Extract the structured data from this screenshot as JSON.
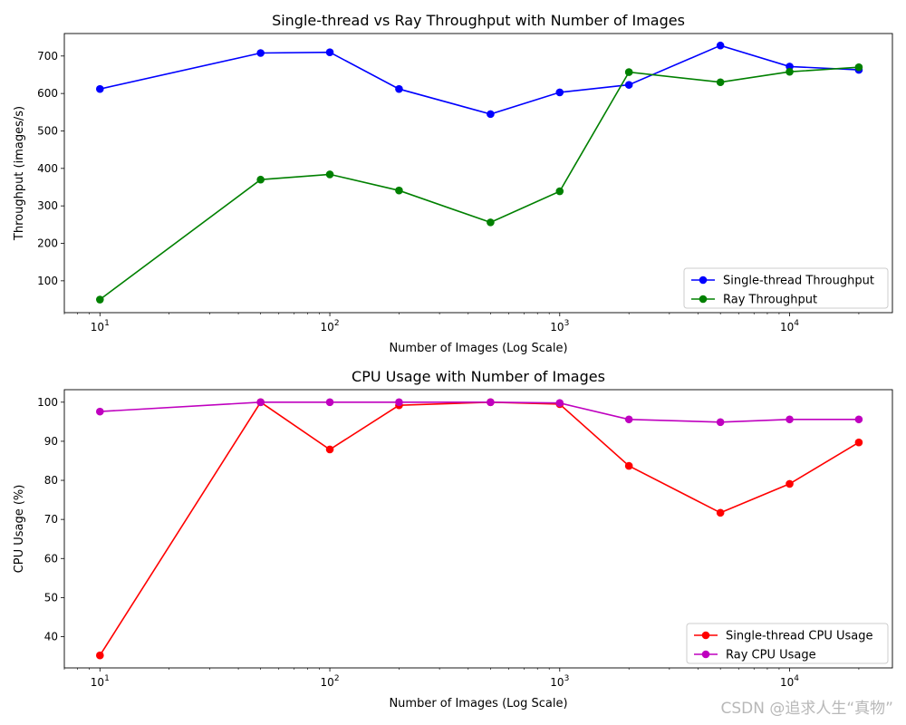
{
  "watermark": "CSDN @追求人生“真物”",
  "chart_data": [
    {
      "type": "line",
      "title": "Single-thread vs Ray Throughput with Number of Images",
      "xlabel": "Number of Images (Log Scale)",
      "ylabel": "Throughput (images/s)",
      "xscale": "log",
      "xlim": [
        7,
        28000
      ],
      "ylim": [
        15,
        760
      ],
      "xticks": [
        {
          "value": 10,
          "base": "10",
          "exp": "1"
        },
        {
          "value": 100,
          "base": "10",
          "exp": "2"
        },
        {
          "value": 1000,
          "base": "10",
          "exp": "3"
        },
        {
          "value": 10000,
          "base": "10",
          "exp": "4"
        }
      ],
      "yticks": [
        100,
        200,
        300,
        400,
        500,
        600,
        700
      ],
      "legend_position": "lower-right",
      "x": [
        10,
        50,
        100,
        200,
        500,
        1000,
        2000,
        5000,
        10000,
        20000
      ],
      "series": [
        {
          "name": "Single-thread Throughput",
          "color": "#0000ff",
          "values": [
            612,
            708,
            710,
            612,
            545,
            603,
            623,
            728,
            672,
            663
          ]
        },
        {
          "name": "Ray Throughput",
          "color": "#008000",
          "values": [
            50,
            370,
            384,
            341,
            256,
            339,
            657,
            630,
            658,
            670
          ]
        }
      ]
    },
    {
      "type": "line",
      "title": "CPU Usage with Number of Images",
      "xlabel": "Number of Images (Log Scale)",
      "ylabel": "CPU Usage (%)",
      "xscale": "log",
      "xlim": [
        7,
        28000
      ],
      "ylim": [
        32,
        103.2
      ],
      "xticks": [
        {
          "value": 10,
          "base": "10",
          "exp": "1"
        },
        {
          "value": 100,
          "base": "10",
          "exp": "2"
        },
        {
          "value": 1000,
          "base": "10",
          "exp": "3"
        },
        {
          "value": 10000,
          "base": "10",
          "exp": "4"
        }
      ],
      "yticks": [
        40,
        50,
        60,
        70,
        80,
        90,
        100
      ],
      "legend_position": "lower-right",
      "x": [
        10,
        50,
        100,
        200,
        500,
        1000,
        2000,
        5000,
        10000,
        20000
      ],
      "series": [
        {
          "name": "Single-thread CPU Usage",
          "color": "#ff0000",
          "values": [
            35.2,
            100,
            87.9,
            99.2,
            100,
            99.5,
            83.7,
            71.7,
            79.1,
            89.7
          ]
        },
        {
          "name": "Ray CPU Usage",
          "color": "#bf00bf",
          "values": [
            97.6,
            100,
            100,
            100,
            100,
            99.8,
            95.6,
            94.9,
            95.6,
            95.6
          ]
        }
      ]
    }
  ]
}
